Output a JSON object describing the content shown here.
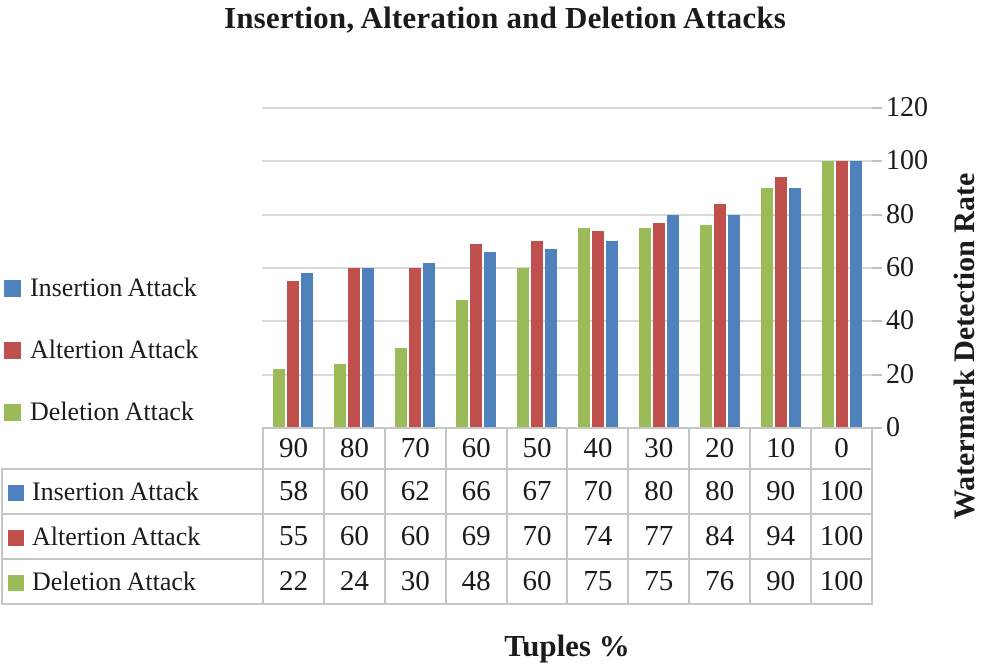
{
  "title": "Insertion, Alteration and Deletion Attacks",
  "axes": {
    "y_title": "Watermark Detection Rate",
    "x_title": "Tuples %",
    "y_ticks": [
      "120",
      "100",
      "80",
      "60",
      "40",
      "20",
      "0"
    ]
  },
  "chart_data": {
    "type": "bar",
    "title": "Insertion, Alteration and Deletion Attacks",
    "categories": [
      "90",
      "80",
      "70",
      "60",
      "50",
      "40",
      "30",
      "20",
      "10",
      "0"
    ],
    "series": [
      {
        "name": "Insertion Attack",
        "color": "#4F81BD",
        "values": [
          58,
          60,
          62,
          66,
          67,
          70,
          80,
          80,
          90,
          100
        ]
      },
      {
        "name": "Altertion Attack",
        "color": "#C0504D",
        "values": [
          55,
          60,
          60,
          69,
          70,
          74,
          77,
          84,
          94,
          100
        ]
      },
      {
        "name": "Deletion Attack",
        "color": "#9BBB59",
        "values": [
          22,
          24,
          30,
          48,
          60,
          75,
          75,
          76,
          90,
          100
        ]
      }
    ],
    "bar_order_in_group": [
      "Deletion Attack",
      "Altertion Attack",
      "Insertion Attack"
    ],
    "xlabel": "Tuples %",
    "ylabel": "Watermark Detection Rate",
    "ylim": [
      0,
      120
    ],
    "grid": true,
    "gridline_color": "#d9d9d9",
    "legend_position": "left",
    "data_table_shown": true
  }
}
